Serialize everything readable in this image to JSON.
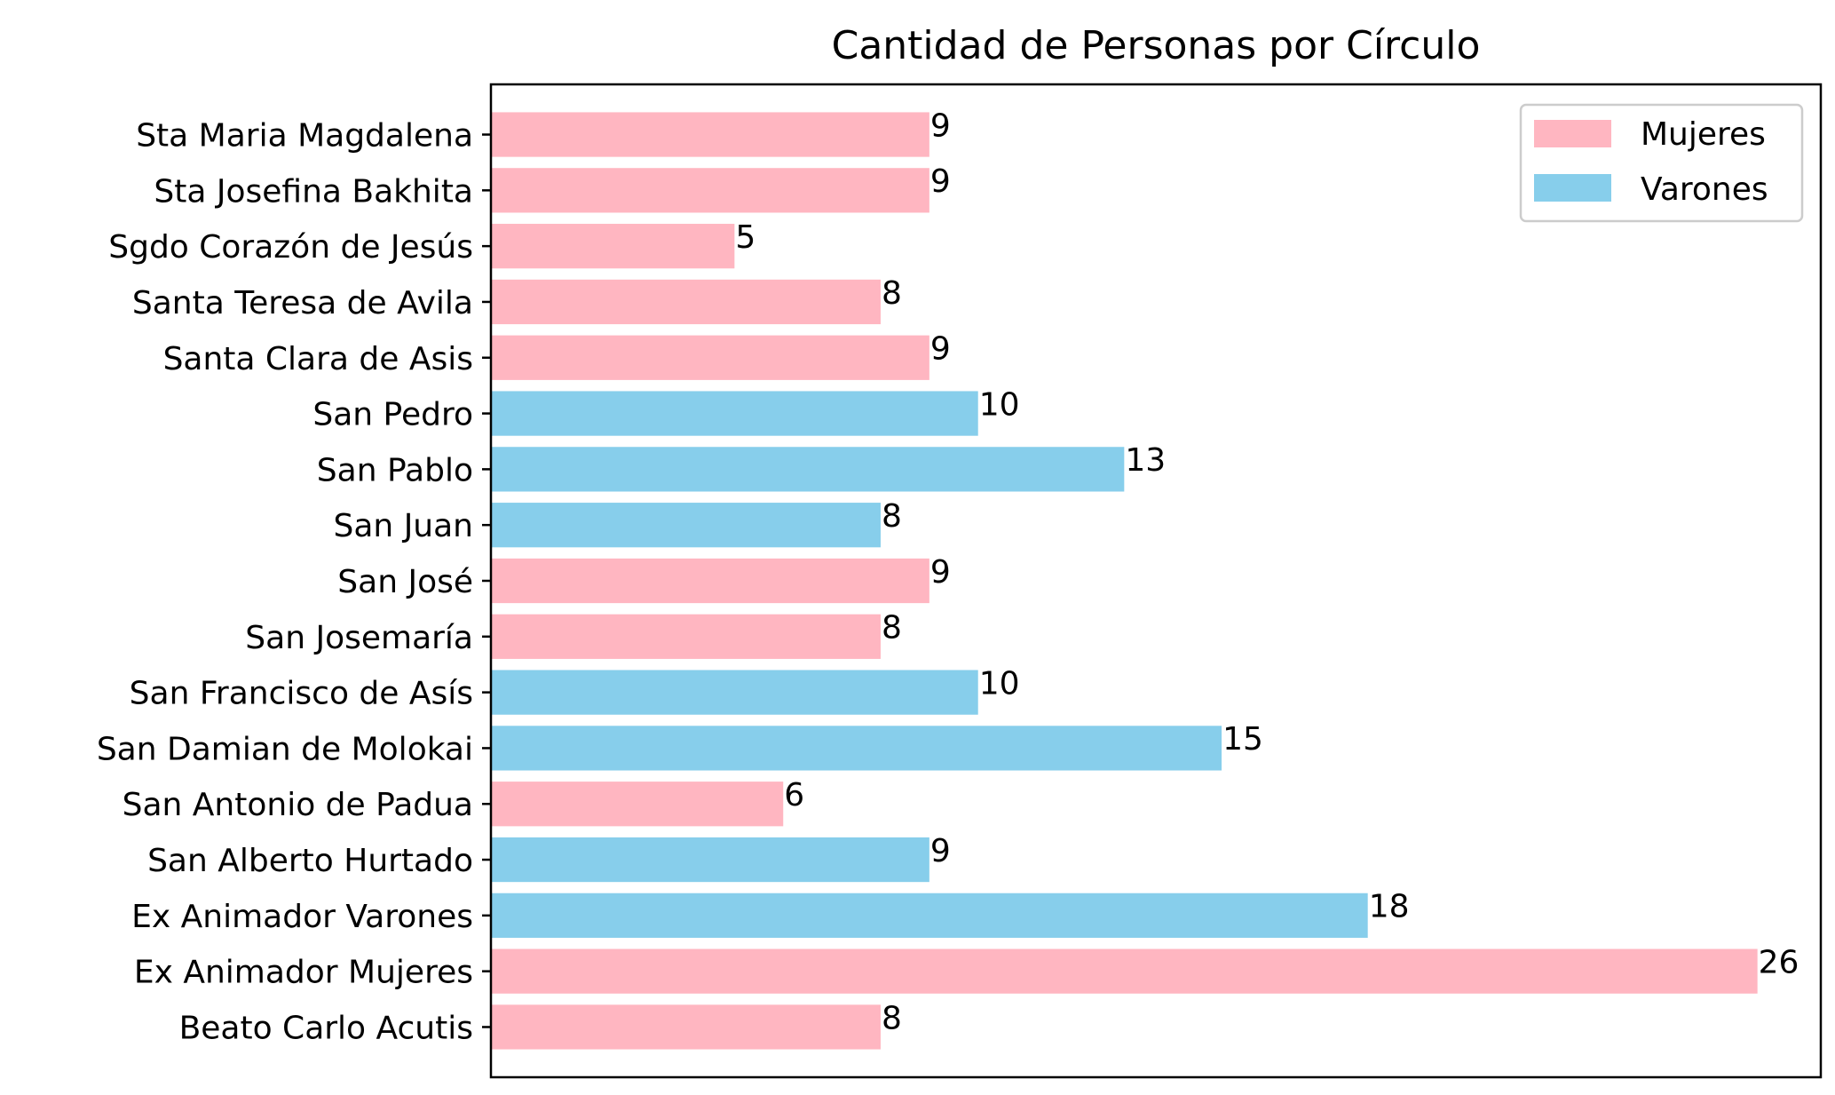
{
  "chart_data": {
    "type": "bar",
    "orientation": "horizontal",
    "title": "Cantidad de Personas por Círculo",
    "xlabel": "",
    "ylabel": "",
    "xlim": [
      0,
      27.3
    ],
    "grid": false,
    "x_ticks_visible": false,
    "legend_position": "top-right",
    "colors": {
      "Mujeres": "#FFB6C1",
      "Varones": "#87CEEB"
    },
    "legend": [
      {
        "name": "Mujeres",
        "color": "#FFB6C1"
      },
      {
        "name": "Varones",
        "color": "#87CEEB"
      }
    ],
    "bars": [
      {
        "category": "Beato Carlo Acutis",
        "value": 8,
        "group": "Mujeres"
      },
      {
        "category": "Ex Animador Mujeres",
        "value": 26,
        "group": "Mujeres"
      },
      {
        "category": "Ex Animador Varones",
        "value": 18,
        "group": "Varones"
      },
      {
        "category": "San Alberto Hurtado",
        "value": 9,
        "group": "Varones"
      },
      {
        "category": "San Antonio de Padua",
        "value": 6,
        "group": "Mujeres"
      },
      {
        "category": "San Damian de Molokai",
        "value": 15,
        "group": "Varones"
      },
      {
        "category": "San Francisco de Asís",
        "value": 10,
        "group": "Varones"
      },
      {
        "category": "San Josemaría",
        "value": 8,
        "group": "Mujeres"
      },
      {
        "category": "San José",
        "value": 9,
        "group": "Mujeres"
      },
      {
        "category": "San Juan",
        "value": 8,
        "group": "Varones"
      },
      {
        "category": "San Pablo",
        "value": 13,
        "group": "Varones"
      },
      {
        "category": "San Pedro",
        "value": 10,
        "group": "Varones"
      },
      {
        "category": "Santa Clara de Asis",
        "value": 9,
        "group": "Mujeres"
      },
      {
        "category": "Santa Teresa de Avila",
        "value": 8,
        "group": "Mujeres"
      },
      {
        "category": "Sgdo Corazón de Jesús",
        "value": 5,
        "group": "Mujeres"
      },
      {
        "category": "Sta Josefina Bakhita",
        "value": 9,
        "group": "Mujeres"
      },
      {
        "category": "Sta Maria Magdalena",
        "value": 9,
        "group": "Mujeres"
      }
    ]
  }
}
